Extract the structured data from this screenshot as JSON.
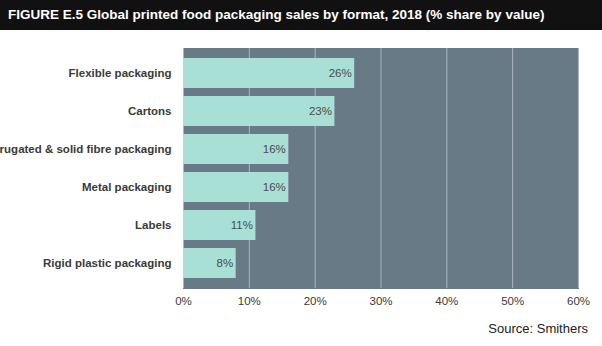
{
  "chart_data": {
    "type": "bar",
    "orientation": "horizontal",
    "title": "FIGURE E.5 Global printed food packaging sales by format, 2018 (% share by value)",
    "source": "Source: Smithers",
    "categories": [
      "Flexible packaging",
      "Cartons",
      "Corrugated & solid fibre packaging",
      "Metal packaging",
      "Labels",
      "Rigid plastic packaging"
    ],
    "values": [
      26,
      23,
      16,
      16,
      11,
      8
    ],
    "value_labels": [
      "26%",
      "23%",
      "16%",
      "16%",
      "11%",
      "8%"
    ],
    "data_labels": true,
    "color": "#a8e0d6",
    "xlim": [
      0,
      60
    ],
    "xticks": [
      {
        "value": 0,
        "label": "0%"
      },
      {
        "value": 10,
        "label": "10%"
      },
      {
        "value": 20,
        "label": "20%"
      },
      {
        "value": 30,
        "label": "30%"
      },
      {
        "value": 40,
        "label": "40%"
      },
      {
        "value": 50,
        "label": "50%"
      },
      {
        "value": 60,
        "label": "60%"
      }
    ],
    "grid": true
  }
}
